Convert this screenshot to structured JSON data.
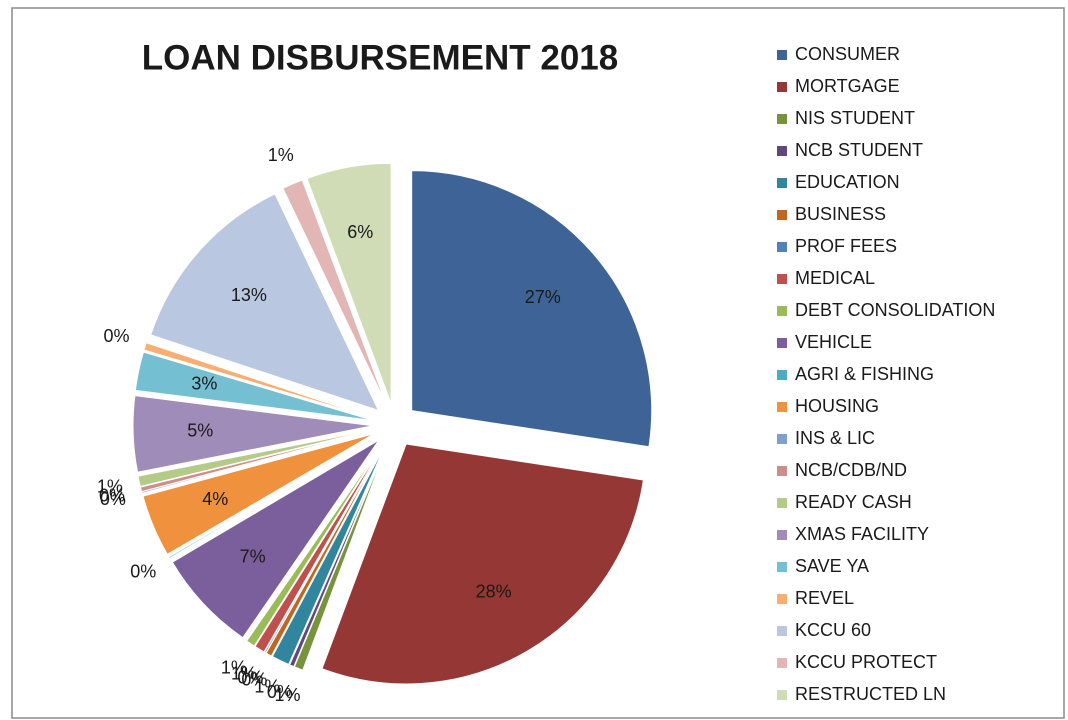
{
  "chart_data": {
    "type": "pie",
    "title": "LOAN DISBURSEMENT 2018",
    "categories": [
      "CONSUMER",
      "MORTGAGE",
      "NIS STUDENT",
      "NCB STUDENT",
      "EDUCATION",
      "BUSINESS",
      "PROF FEES",
      "MEDICAL",
      "DEBT CONSOLIDATION",
      "VEHICLE",
      "AGRI & FISHING",
      "HOUSING",
      "INS & LIC",
      "NCB/CDB/ND",
      "READY CASH",
      "XMAS FACILITY",
      "SAVE YA",
      "REVEL",
      "KCCU 60",
      "KCCU PROTECT",
      "RESTRUCTED LN"
    ],
    "values": [
      27.4,
      28.3,
      0.6,
      0.3,
      1.2,
      0.4,
      0.1,
      0.7,
      0.6,
      6.9,
      0.1,
      4.2,
      0.1,
      0.3,
      0.7,
      5.1,
      2.6,
      0.5,
      12.8,
      1.4,
      5.7
    ],
    "value_labels": [
      "27%",
      "28%",
      "1%",
      "0%",
      "1%",
      "0%",
      "0%",
      "1%",
      "1%",
      "7%",
      "0%",
      "4%",
      "0%",
      "0%",
      "1%",
      "5%",
      "3%",
      "0%",
      "13%",
      "1%",
      "6%"
    ],
    "colors": [
      "#3E6497",
      "#953735",
      "#77933C",
      "#5F497A",
      "#31859C",
      "#C0661F",
      "#4F81BD",
      "#C0504D",
      "#9BBB59",
      "#7A5F9C",
      "#4BACC6",
      "#F0913E",
      "#7F9FCF",
      "#D08C8A",
      "#B3CB87",
      "#A08CB8",
      "#74BFD1",
      "#F8AE70",
      "#B9C7E0",
      "#E2B6B5",
      "#CFDCB5"
    ]
  }
}
